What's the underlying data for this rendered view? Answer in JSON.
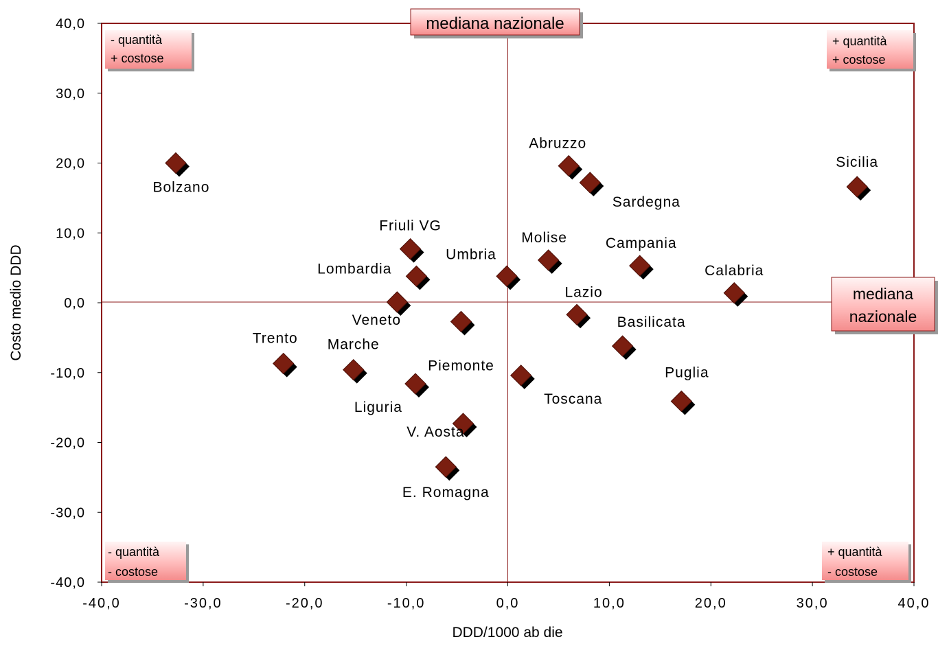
{
  "chart_data": {
    "type": "scatter",
    "title": "",
    "xlabel": "DDD/1000 ab die",
    "ylabel": "Costo medio DDD",
    "xlim": [
      -40,
      40
    ],
    "ylim": [
      -40,
      40
    ],
    "x_ticks": [
      "-40,0",
      "-30,0",
      "-20,0",
      "-10,0",
      "0,0",
      "10,0",
      "20,0",
      "30,0",
      "40,0"
    ],
    "y_ticks": [
      "40,0",
      "30,0",
      "20,0",
      "10,0",
      "0,0",
      "-10,0",
      "-20,0",
      "-30,0",
      "-40,0"
    ],
    "grid": false,
    "marker_color": "#7a1e10",
    "points": [
      {
        "label": "Bolzano",
        "x": -32.7,
        "y": 20.0
      },
      {
        "label": "Friuli VG",
        "x": -9.6,
        "y": 7.7
      },
      {
        "label": "Lombardia",
        "x": -9.0,
        "y": 3.8
      },
      {
        "label": "Veneto",
        "x": -10.9,
        "y": 0.1
      },
      {
        "label": "Trento",
        "x": -22.1,
        "y": -8.7
      },
      {
        "label": "Marche",
        "x": -15.2,
        "y": -9.6
      },
      {
        "label": "Liguria",
        "x": -9.1,
        "y": -11.6
      },
      {
        "label": "Piemonte",
        "x": -4.6,
        "y": -2.7
      },
      {
        "label": "V. Aosta",
        "x": -4.4,
        "y": -17.3
      },
      {
        "label": "E. Romagna",
        "x": -6.1,
        "y": -23.5
      },
      {
        "label": "Umbria",
        "x": -0.1,
        "y": 3.8
      },
      {
        "label": "Toscana",
        "x": 1.3,
        "y": -10.4
      },
      {
        "label": "Abruzzo",
        "x": 6.0,
        "y": 19.6
      },
      {
        "label": "Sardegna",
        "x": 8.1,
        "y": 17.2
      },
      {
        "label": "Molise",
        "x": 4.0,
        "y": 6.1
      },
      {
        "label": "Lazio",
        "x": 6.8,
        "y": -1.7
      },
      {
        "label": "Campania",
        "x": 13.0,
        "y": 5.3
      },
      {
        "label": "Basilicata",
        "x": 11.3,
        "y": -6.2
      },
      {
        "label": "Calabria",
        "x": 22.3,
        "y": 1.4
      },
      {
        "label": "Puglia",
        "x": 17.1,
        "y": -14.1
      },
      {
        "label": "Sicilia",
        "x": 34.4,
        "y": 16.6
      }
    ],
    "reference_lines": {
      "vertical_label": "mediana nazionale",
      "horizontal_label": [
        "mediana",
        "nazionale"
      ]
    },
    "quadrant_labels": {
      "top_left": [
        "-  quantità",
        "+ costose"
      ],
      "top_right": [
        "+ quantità",
        "+ costose"
      ],
      "bottom_left": [
        "- quantità",
        "- costose"
      ],
      "bottom_right": [
        "+ quantità",
        "-  costose"
      ]
    }
  }
}
